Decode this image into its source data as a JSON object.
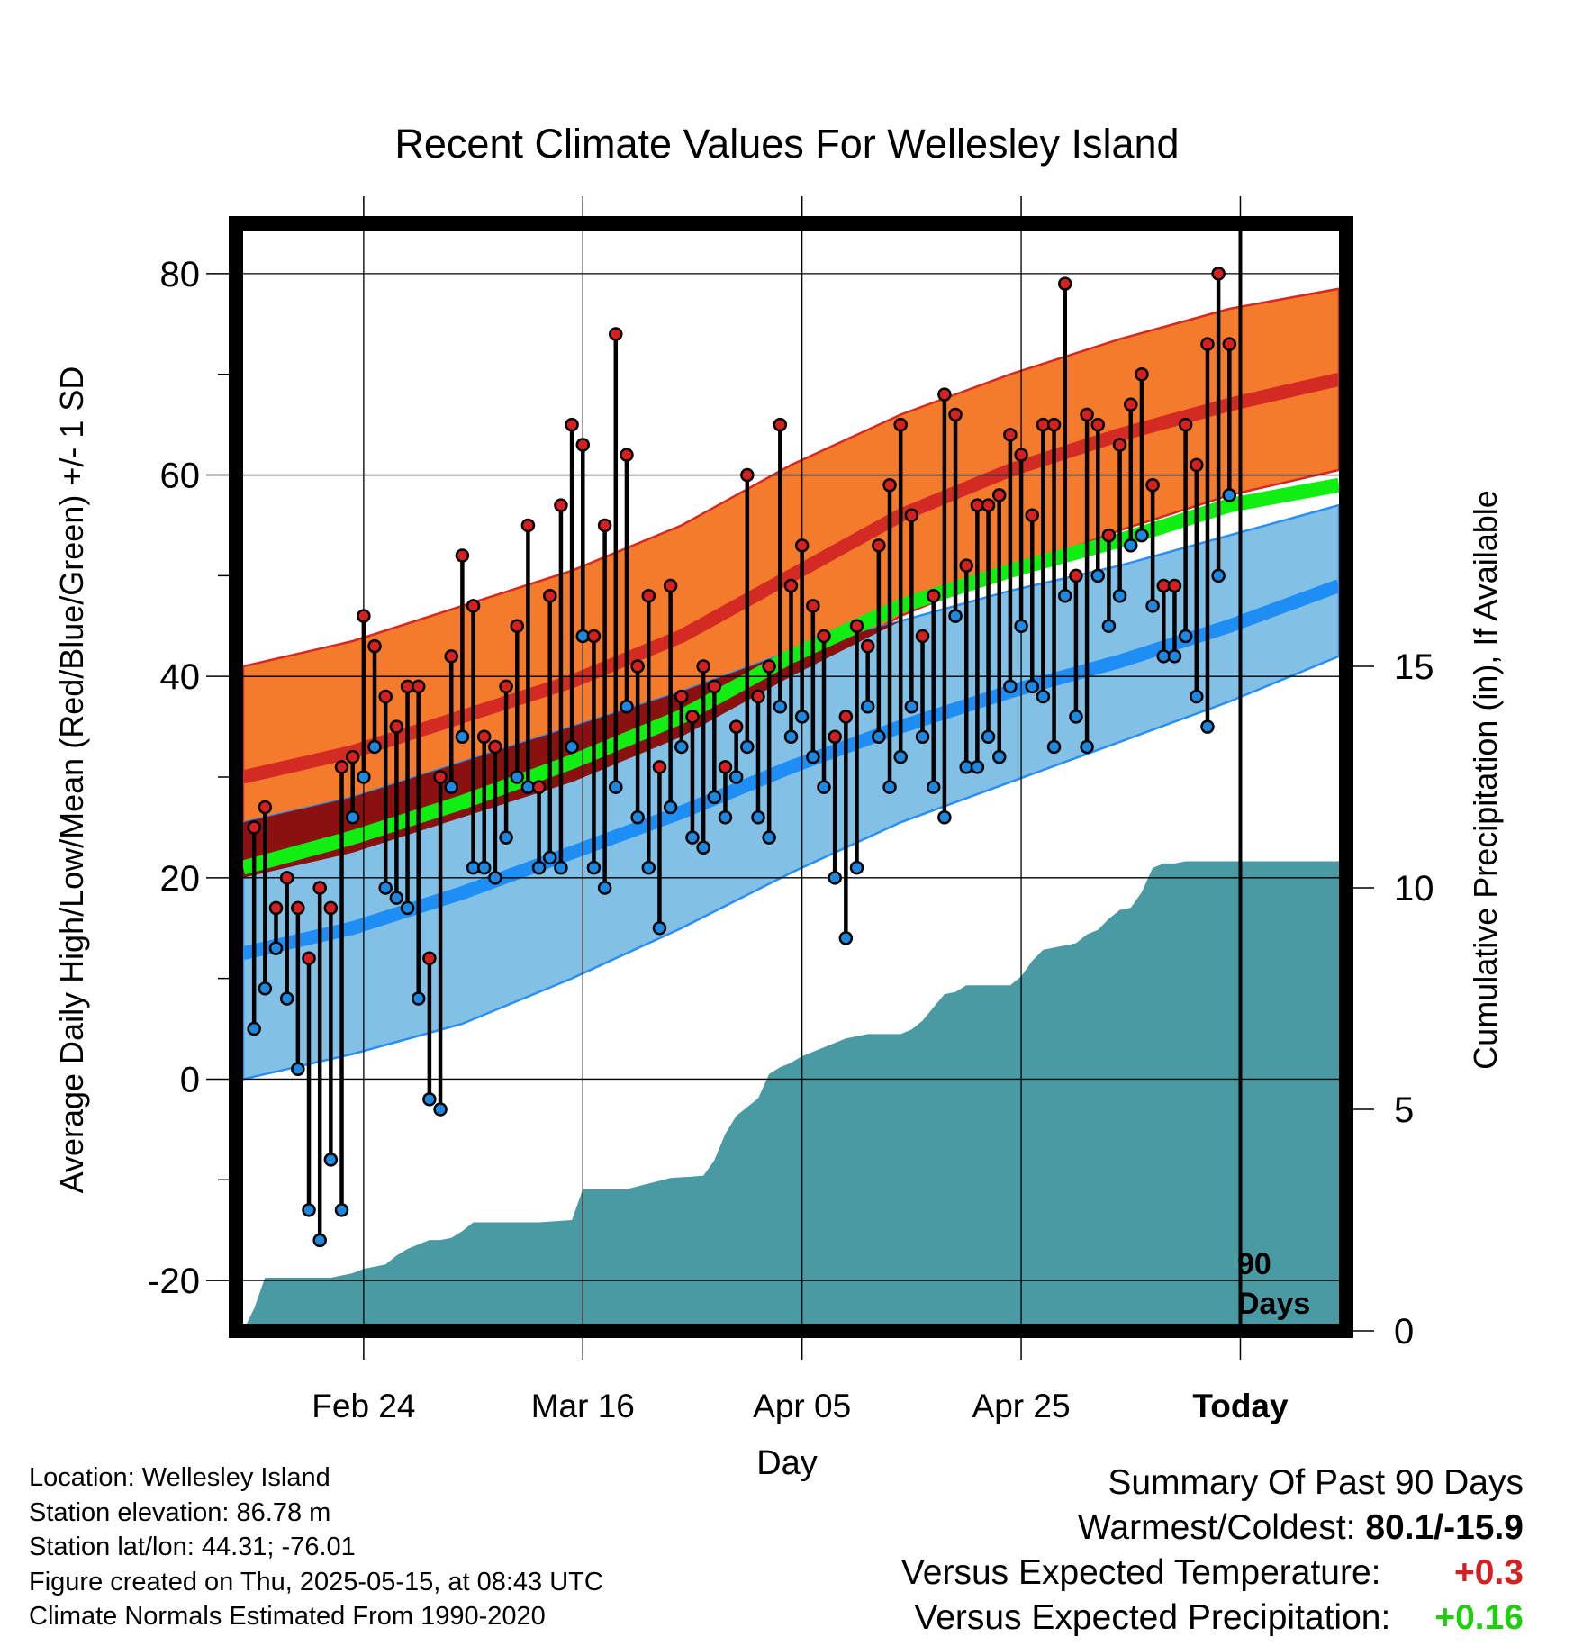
{
  "chart_data": {
    "type": "line",
    "title": "Recent Climate Values For Wellesley Island",
    "xlabel": "Day",
    "ylabel_left": "Average Daily High/Low/Mean (Red/Blue/Green) +/- 1 SD",
    "ylabel_right": "Cumulative Precipitation (in), If Available",
    "x_ticks": [
      {
        "day": 11,
        "label": "Feb 24"
      },
      {
        "day": 31,
        "label": "Mar 16"
      },
      {
        "day": 51,
        "label": "Apr 05"
      },
      {
        "day": 71,
        "label": "Apr 25"
      },
      {
        "day": 91,
        "label": "Today"
      }
    ],
    "today_label": "90 Days",
    "xlim": [
      0,
      100
    ],
    "ylim_temp": [
      -25,
      85
    ],
    "y_ticks_temp": [
      -20,
      0,
      20,
      40,
      60,
      80
    ],
    "ylim_precip": [
      0,
      25
    ],
    "y_ticks_precip": [
      0,
      5,
      10,
      15
    ],
    "normals": {
      "x": [
        0,
        10,
        20,
        30,
        40,
        50,
        60,
        70,
        80,
        90,
        100
      ],
      "high_upper": [
        41.0,
        43.5,
        47.0,
        50.5,
        55.0,
        61.0,
        66.0,
        70.0,
        73.5,
        76.5,
        78.5
      ],
      "high_mean": [
        30.0,
        32.5,
        36.0,
        39.5,
        44.0,
        50.0,
        56.0,
        60.5,
        64.0,
        67.0,
        69.5
      ],
      "high_lower": [
        20.0,
        22.5,
        26.0,
        29.5,
        34.0,
        40.0,
        46.0,
        50.5,
        54.5,
        58.0,
        60.5
      ],
      "low_upper": [
        25.5,
        28.0,
        31.5,
        35.0,
        38.5,
        42.5,
        45.5,
        48.5,
        51.0,
        54.0,
        57.0
      ],
      "low_mean": [
        12.5,
        15.0,
        18.5,
        22.5,
        26.5,
        31.0,
        35.0,
        38.5,
        41.5,
        45.0,
        49.0
      ],
      "low_lower": [
        0.0,
        2.5,
        5.5,
        10.0,
        15.0,
        20.5,
        25.5,
        29.5,
        33.5,
        37.5,
        42.0
      ],
      "mean_normal": [
        21.0,
        24.0,
        27.5,
        31.5,
        36.0,
        42.0,
        47.0,
        50.5,
        53.5,
        57.0,
        59.0
      ]
    },
    "daily": {
      "high": [
        25,
        27,
        17,
        20,
        17,
        12,
        19,
        17,
        31,
        32,
        46,
        43,
        38,
        35,
        39,
        39,
        12,
        30,
        42,
        52,
        47,
        34,
        33,
        39,
        45,
        55,
        29,
        48,
        57,
        65,
        63,
        44,
        55,
        74,
        62,
        41,
        48,
        31,
        49,
        38,
        36,
        41,
        39,
        31,
        35,
        60,
        38,
        41,
        65,
        49,
        53,
        47,
        44,
        34,
        36,
        45,
        43,
        53,
        59,
        65,
        56,
        44,
        48,
        68,
        66,
        51,
        57,
        57,
        58,
        64,
        62,
        56,
        65,
        65,
        79,
        50,
        66,
        65,
        54,
        63,
        67,
        70,
        59,
        49,
        49,
        65,
        61,
        73,
        80,
        73
      ],
      "low": [
        5,
        9,
        13,
        8,
        1,
        -13,
        -16,
        -8,
        -13,
        26,
        30,
        33,
        19,
        18,
        17,
        8,
        -2,
        -3,
        29,
        34,
        21,
        21,
        20,
        24,
        30,
        29,
        21,
        22,
        21,
        33,
        44,
        21,
        19,
        29,
        37,
        26,
        21,
        15,
        27,
        33,
        24,
        23,
        28,
        26,
        30,
        33,
        26,
        24,
        37,
        34,
        36,
        32,
        29,
        20,
        14,
        21,
        37,
        34,
        29,
        32,
        37,
        34,
        29,
        26,
        46,
        31,
        31,
        34,
        32,
        39,
        45,
        39,
        38,
        33,
        48,
        36,
        33,
        50,
        45,
        48,
        53,
        54,
        47,
        42,
        42,
        44,
        38,
        35,
        50,
        58
      ]
    },
    "precip_cumulative": {
      "x": [
        0,
        1,
        2,
        5,
        8,
        9,
        10,
        11,
        12,
        13,
        14,
        15,
        17,
        18,
        19,
        20,
        21,
        25,
        27,
        30,
        31,
        35,
        39,
        42,
        43,
        44,
        45,
        46,
        47,
        48,
        49,
        50,
        51,
        52,
        53,
        55,
        57,
        60,
        61,
        62,
        63,
        64,
        65,
        66,
        67,
        68,
        69,
        70,
        71,
        72,
        73,
        74,
        75,
        76,
        77,
        78,
        79,
        80,
        81,
        82,
        83,
        84,
        85,
        86,
        87,
        88,
        89,
        90,
        91,
        95,
        100
      ],
      "cumulative": [
        0,
        0.5,
        1.2,
        1.2,
        1.2,
        1.25,
        1.3,
        1.4,
        1.45,
        1.5,
        1.7,
        1.85,
        2.05,
        2.05,
        2.1,
        2.25,
        2.45,
        2.45,
        2.45,
        2.5,
        3.2,
        3.2,
        3.45,
        3.5,
        3.85,
        4.45,
        4.85,
        5.05,
        5.25,
        5.8,
        5.95,
        6.05,
        6.2,
        6.3,
        6.4,
        6.6,
        6.7,
        6.7,
        6.8,
        7.0,
        7.3,
        7.6,
        7.65,
        7.8,
        7.8,
        7.8,
        7.8,
        7.8,
        8.0,
        8.35,
        8.6,
        8.65,
        8.7,
        8.75,
        8.95,
        9.05,
        9.3,
        9.5,
        9.55,
        9.9,
        10.45,
        10.55,
        10.55,
        10.6,
        10.6,
        10.6,
        10.6,
        10.6,
        10.6,
        10.6,
        10.6
      ]
    }
  },
  "footer": {
    "location": "Location: Wellesley Island",
    "elevation": "Station elevation: 86.78 m",
    "latlon": "Station lat/lon: 44.31; -76.01",
    "created": "Figure created on Thu, 2025-05-15, at 08:43 UTC",
    "normals": "Climate Normals Estimated From 1990-2020"
  },
  "summary": {
    "heading": "Summary Of Past 90 Days",
    "warm_cold_label": "Warmest/Coldest:",
    "warm_cold_value": "80.1/-15.9",
    "temp_label": "Versus Expected Temperature:",
    "temp_value": "+0.3",
    "precip_label": "Versus Expected Precipitation:",
    "precip_value": "+0.16"
  },
  "colors": {
    "high_band": "#f47a2c",
    "high_band_edge": "#d52a22",
    "high_mean": "#d42a24",
    "low_band": "#82c0e6",
    "low_band_edge": "#2a8ff0",
    "low_mean": "#1e8ef5",
    "overlap": "#8b1111",
    "mean_normal": "#11ee11",
    "precip": "#4a9aa3",
    "high_dot": "#d42020",
    "low_dot": "#1e88e0"
  }
}
